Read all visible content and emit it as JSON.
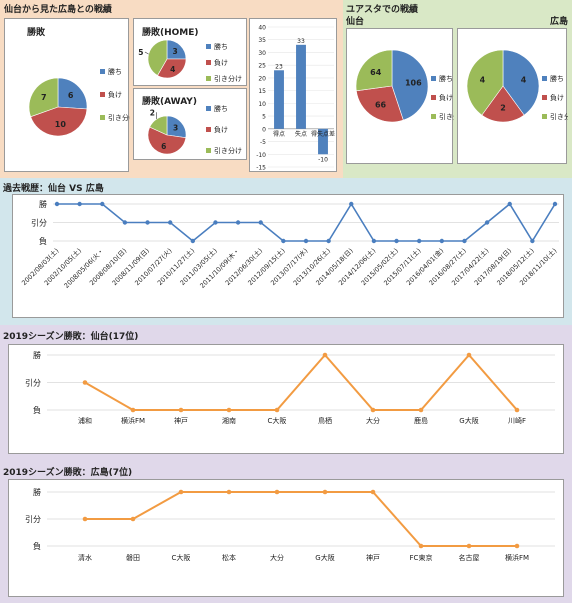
{
  "colors": {
    "win": "#4f81bd",
    "loss": "#c0504d",
    "draw": "#9bbb59",
    "line_blue": "#4a7ebf",
    "line_orange": "#f29b42",
    "panel_top_left": "#f8dcc3",
    "panel_top_right": "#d9e8c6",
    "panel_history": "#d2e6ec",
    "panel_season": "#e0d8ea"
  },
  "top_left_panel": {
    "title": "仙台から見た広島との戦績"
  },
  "top_right_panel": {
    "title": "ユアスタでの戦績",
    "left_label": "仙台",
    "right_label": "広島"
  },
  "chart_data": [
    {
      "id": "overall",
      "type": "pie",
      "title": "勝敗",
      "categories": [
        "勝ち",
        "負け",
        "引き分け"
      ],
      "values": [
        6,
        10,
        7
      ]
    },
    {
      "id": "home",
      "type": "pie",
      "title": "勝敗(HOME)",
      "categories": [
        "勝ち",
        "負け",
        "引き分け"
      ],
      "values": [
        3,
        4,
        5
      ]
    },
    {
      "id": "away",
      "type": "pie",
      "title": "勝敗(AWAY)",
      "categories": [
        "勝ち",
        "負け",
        "引き分け"
      ],
      "values": [
        3,
        6,
        2
      ]
    },
    {
      "id": "goals",
      "type": "bar",
      "categories": [
        "得点",
        "失点",
        "得失点差"
      ],
      "values": [
        23,
        33,
        -10
      ],
      "ylim": [
        -15,
        40
      ],
      "yticks": [
        -15,
        -10,
        -5,
        0,
        5,
        10,
        15,
        20,
        25,
        30,
        35,
        40
      ]
    },
    {
      "id": "yurtec_sendai",
      "type": "pie",
      "categories": [
        "勝ち",
        "負け",
        "引き分け"
      ],
      "values": [
        106,
        66,
        64
      ]
    },
    {
      "id": "yurtec_hiroshima",
      "type": "pie",
      "categories": [
        "勝ち",
        "負け",
        "引き分け"
      ],
      "values": [
        4,
        2,
        4
      ]
    },
    {
      "id": "history",
      "type": "line",
      "title": "過去戦歴：仙台 VS 広島",
      "ylevels": [
        "負",
        "引分",
        "勝"
      ],
      "x": [
        "2002/08/03(土)",
        "2002/10/05(土)",
        "2008/05/06(火・)",
        "2008/08/10(日)",
        "2008/11/09(日)",
        "2010/07/27(火)",
        "2010/11/27(土)",
        "2011/03/05(土)",
        "2011/10/09(木・)",
        "2012/06/30(土)",
        "2012/09/15(土)",
        "2013/07/17(水)",
        "2013/10/26(土)",
        "2014/05/18(日)",
        "2014/12/06(土)",
        "2015/05/02(土)",
        "2015/07/11(土)",
        "2016/04/01(金)",
        "2016/08/27(土)",
        "2017/04/22(土)",
        "2017/08/19(日)",
        "2018/05/12(土)",
        "2018/11/10(土)"
      ],
      "xlabels": [
        "2002/08/03(土)",
        "2002/10/05(土)",
        "2008/05/06(火・",
        "2008/08/10(日)",
        "2008/11/09(日)",
        "2010/07/27(火)",
        "2010/11/27(土)",
        "2011/03/05(土)",
        "2011/10/09(木・",
        "2012/06/30(土)",
        "2012/09/15(土)",
        "2013/07/17(水)",
        "2013/10/26(土)",
        "2014/05/18(日)",
        "2014/12/06(土)",
        "2015/05/02(土)",
        "2015/07/11(土)",
        "2016/04/01(金)",
        "2016/08/27(土)",
        "2017/04/22(土)",
        "2017/08/19(日)",
        "2018/05/12(土)",
        "2018/11/10(土)"
      ],
      "values": [
        2,
        2,
        2,
        1,
        1,
        1,
        0,
        1,
        1,
        1,
        0,
        0,
        0,
        2,
        0,
        0,
        0,
        0,
        0,
        1,
        2,
        0,
        2
      ]
    },
    {
      "id": "season_sendai",
      "type": "line",
      "title": "2019シーズン勝敗：仙台(17位)",
      "ylevels": [
        "負",
        "引分",
        "勝"
      ],
      "x": [
        "浦和",
        "横浜FM",
        "神戸",
        "湘南",
        "C大阪",
        "鳥栖",
        "大分",
        "鹿島",
        "G大阪",
        "川崎F"
      ],
      "values": [
        1,
        0,
        0,
        0,
        0,
        2,
        0,
        0,
        2,
        0
      ]
    },
    {
      "id": "season_hiroshima",
      "type": "line",
      "title": "2019シーズン勝敗：広島(7位)",
      "ylevels": [
        "負",
        "引分",
        "勝"
      ],
      "x": [
        "清水",
        "磐田",
        "C大阪",
        "松本",
        "大分",
        "G大阪",
        "神戸",
        "FC東京",
        "名古屋",
        "横浜FM"
      ],
      "values": [
        1,
        1,
        2,
        2,
        2,
        2,
        2,
        0,
        0,
        0
      ]
    }
  ]
}
